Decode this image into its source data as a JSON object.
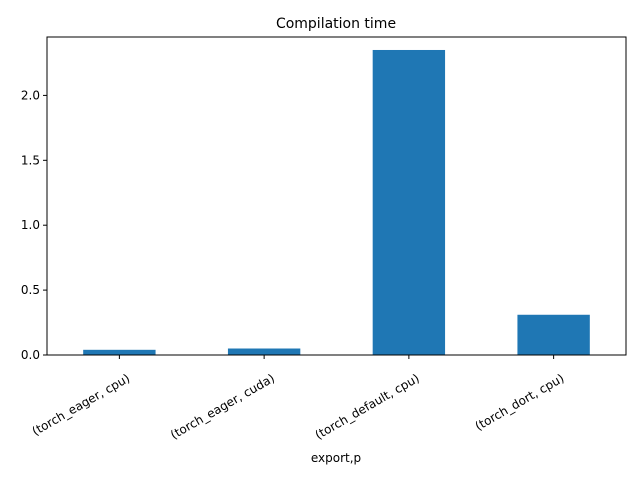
{
  "chart_data": {
    "type": "bar",
    "title": "Compilation time",
    "xlabel": "export,p",
    "ylabel": "",
    "categories": [
      "(torch_eager, cpu)",
      "(torch_eager, cuda)",
      "(torch_default, cpu)",
      "(torch_dort, cpu)"
    ],
    "values": [
      0.04,
      0.05,
      2.35,
      0.31
    ],
    "ylim": [
      0,
      2.45
    ],
    "yticks": [
      0.0,
      0.5,
      1.0,
      1.5,
      2.0
    ],
    "ytick_labels": [
      "0.0",
      "0.5",
      "1.0",
      "1.5",
      "2.0"
    ],
    "bar_color": "#1f77b4",
    "grid": false,
    "legend": "none"
  }
}
